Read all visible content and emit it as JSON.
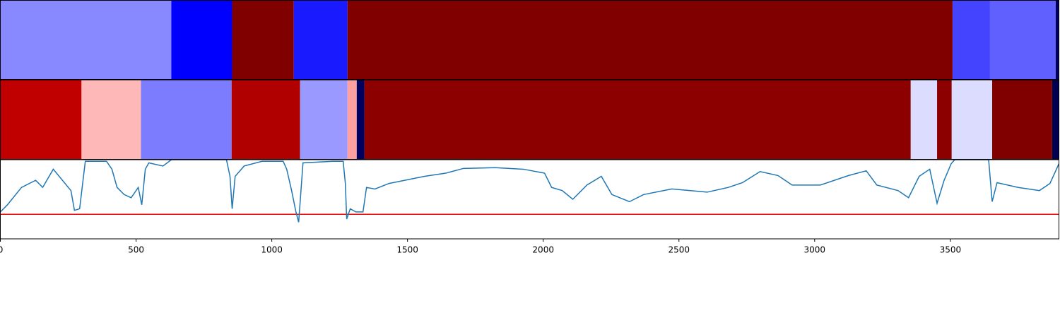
{
  "chart_data": {
    "type": "segmented-line",
    "xlim": [
      0,
      3900
    ],
    "xticks": [
      0,
      500,
      1000,
      1500,
      2000,
      2500,
      3000,
      3500
    ],
    "ylim": [
      0,
      1
    ],
    "strips": [
      {
        "segments": [
          {
            "start": 0,
            "end": 630,
            "color": "#8888ff"
          },
          {
            "start": 630,
            "end": 854,
            "color": "#0000ff"
          },
          {
            "start": 854,
            "end": 1081,
            "color": "#800000"
          },
          {
            "start": 1081,
            "end": 1279,
            "color": "#1a1aff"
          },
          {
            "start": 1279,
            "end": 3508,
            "color": "#800000"
          },
          {
            "start": 3508,
            "end": 3646,
            "color": "#4444ff"
          },
          {
            "start": 3646,
            "end": 3888,
            "color": "#6060ff"
          },
          {
            "start": 3888,
            "end": 3900,
            "color": "#000060"
          }
        ]
      },
      {
        "segments": [
          {
            "start": 0,
            "end": 299,
            "color": "#c00000"
          },
          {
            "start": 299,
            "end": 518,
            "color": "#ffb8b8"
          },
          {
            "start": 518,
            "end": 852,
            "color": "#7c7cff"
          },
          {
            "start": 852,
            "end": 1104,
            "color": "#b00000"
          },
          {
            "start": 1104,
            "end": 1279,
            "color": "#9999ff"
          },
          {
            "start": 1279,
            "end": 1313,
            "color": "#ffa0a0"
          },
          {
            "start": 1313,
            "end": 1341,
            "color": "#000060"
          },
          {
            "start": 1341,
            "end": 3354,
            "color": "#8c0000"
          },
          {
            "start": 3354,
            "end": 3451,
            "color": "#dcdcff"
          },
          {
            "start": 3451,
            "end": 3505,
            "color": "#8c0000"
          },
          {
            "start": 3505,
            "end": 3654,
            "color": "#dcdcff"
          },
          {
            "start": 3654,
            "end": 3875,
            "color": "#800000"
          },
          {
            "start": 3875,
            "end": 3900,
            "color": "#000050"
          }
        ]
      }
    ],
    "line": {
      "color": "#1f77b4",
      "x": [
        0,
        26,
        78,
        130,
        156,
        195,
        260,
        273,
        292,
        313,
        391,
        411,
        430,
        456,
        482,
        508,
        521,
        534,
        547,
        599,
        630,
        833,
        846,
        854,
        865,
        898,
        964,
        1042,
        1055,
        1073,
        1089,
        1099,
        1115,
        1224,
        1263,
        1271,
        1276,
        1289,
        1310,
        1336,
        1349,
        1380,
        1432,
        1563,
        1641,
        1706,
        1823,
        1927,
        2005,
        2031,
        2070,
        2109,
        2161,
        2214,
        2253,
        2318,
        2370,
        2474,
        2604,
        2682,
        2734,
        2799,
        2865,
        2917,
        3021,
        3125,
        3190,
        3229,
        3307,
        3346,
        3385,
        3424,
        3451,
        3477,
        3503,
        3516,
        3641,
        3654,
        3672,
        3750,
        3828,
        3867,
        3900
      ],
      "values": [
        0.34,
        0.43,
        0.65,
        0.74,
        0.65,
        0.88,
        0.61,
        0.36,
        0.38,
        0.98,
        0.98,
        0.88,
        0.65,
        0.56,
        0.52,
        0.65,
        0.43,
        0.88,
        0.96,
        0.92,
        1.0,
        1.0,
        0.79,
        0.38,
        0.79,
        0.92,
        0.98,
        0.98,
        0.88,
        0.61,
        0.34,
        0.21,
        0.96,
        0.98,
        0.98,
        0.7,
        0.25,
        0.38,
        0.34,
        0.34,
        0.65,
        0.63,
        0.7,
        0.79,
        0.83,
        0.89,
        0.9,
        0.88,
        0.83,
        0.65,
        0.61,
        0.5,
        0.68,
        0.79,
        0.56,
        0.47,
        0.56,
        0.63,
        0.59,
        0.65,
        0.71,
        0.85,
        0.8,
        0.68,
        0.68,
        0.8,
        0.86,
        0.68,
        0.61,
        0.52,
        0.79,
        0.88,
        0.45,
        0.74,
        0.95,
        1.0,
        1.0,
        0.47,
        0.71,
        0.65,
        0.61,
        0.7,
        0.95
      ]
    },
    "hline": {
      "value": 0.31,
      "color": "#ff0000"
    }
  }
}
